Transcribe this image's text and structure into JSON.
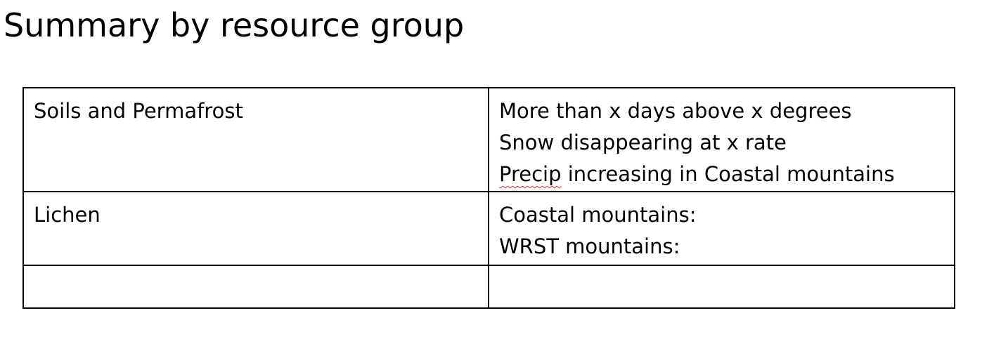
{
  "document": {
    "title": "Summary by resource group",
    "table": {
      "rows": [
        {
          "resource": "Soils and Permafrost",
          "notes": {
            "line1": "More than x days above x degrees",
            "line2": "Snow disappearing at x rate",
            "line3_flagged_word": "Precip",
            "line3_rest": " increasing in Coastal mountains"
          }
        },
        {
          "resource": "Lichen",
          "notes": {
            "line1": "Coastal mountains:",
            "line2": "WRST mountains:"
          }
        },
        {
          "resource": "",
          "notes": {}
        }
      ]
    }
  },
  "colors": {
    "text": "#000000",
    "border": "#000000",
    "spellcheck_underline": "#e03030"
  }
}
